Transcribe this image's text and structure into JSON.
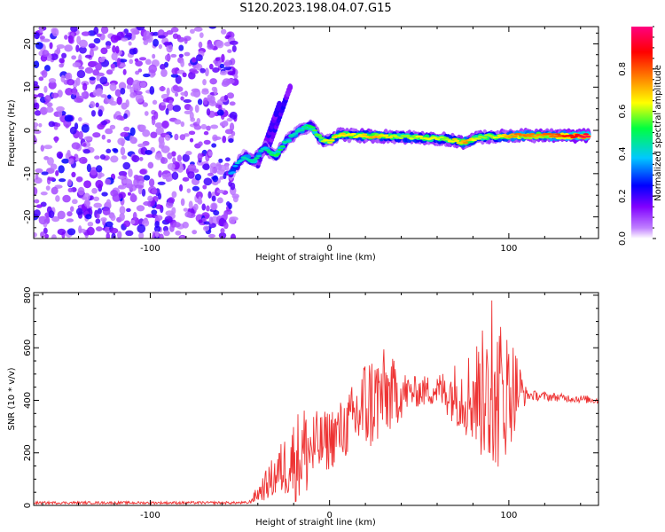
{
  "title": "S120.2023.198.04.07.G15",
  "chart_data": [
    {
      "type": "heatmap",
      "title": "S120.2023.198.04.07.G15",
      "xlabel": "Height of straight line (km)",
      "ylabel": "Frequency (Hz)",
      "xlim": [
        -165,
        150
      ],
      "ylim": [
        -25,
        24
      ],
      "x_ticks": [
        "-100",
        "0",
        "100"
      ],
      "y_ticks": [
        "20",
        "10",
        "0",
        "-10",
        "-20"
      ],
      "colorbar": {
        "label": "Normalized spectral amplitude",
        "range": [
          0,
          1
        ],
        "ticks": [
          "0.0",
          "0.2",
          "0.4",
          "0.6",
          "0.8"
        ],
        "colors": [
          "#ffffff",
          "#9400ff",
          "#0000ff",
          "#00c8ff",
          "#00ff40",
          "#ffff00",
          "#ff8000",
          "#ff0000",
          "#ff0080"
        ]
      },
      "noise_region_x": [
        -165,
        -52
      ],
      "ridge": [
        {
          "x": -55,
          "y": -10,
          "a": 0.35
        },
        {
          "x": -48,
          "y": -6,
          "a": 0.4
        },
        {
          "x": -42,
          "y": -7,
          "a": 0.45
        },
        {
          "x": -36,
          "y": -4,
          "a": 0.4
        },
        {
          "x": -30,
          "y": -6,
          "a": 0.5
        },
        {
          "x": -25,
          "y": -3,
          "a": 0.45
        },
        {
          "x": -20,
          "y": -1,
          "a": 0.4
        },
        {
          "x": -14,
          "y": 0.5,
          "a": 0.45
        },
        {
          "x": -10,
          "y": 1,
          "a": 0.5
        },
        {
          "x": -5,
          "y": -2,
          "a": 0.55
        },
        {
          "x": 0,
          "y": -2.5,
          "a": 0.6
        },
        {
          "x": 5,
          "y": -1,
          "a": 0.65
        },
        {
          "x": 15,
          "y": -1.2,
          "a": 0.6
        },
        {
          "x": 25,
          "y": -1.3,
          "a": 0.7
        },
        {
          "x": 40,
          "y": -1.5,
          "a": 0.55
        },
        {
          "x": 55,
          "y": -1.8,
          "a": 0.6
        },
        {
          "x": 65,
          "y": -2,
          "a": 0.55
        },
        {
          "x": 75,
          "y": -2.8,
          "a": 0.7
        },
        {
          "x": 85,
          "y": -1.5,
          "a": 0.55
        },
        {
          "x": 95,
          "y": -1.4,
          "a": 0.6
        },
        {
          "x": 105,
          "y": -1.2,
          "a": 0.75
        },
        {
          "x": 115,
          "y": -1.2,
          "a": 0.7
        },
        {
          "x": 125,
          "y": -1.2,
          "a": 0.75
        },
        {
          "x": 135,
          "y": -1.3,
          "a": 0.85
        },
        {
          "x": 145,
          "y": -1.2,
          "a": 0.9
        }
      ],
      "streaks": [
        {
          "x": [
            -35,
            -22
          ],
          "y": [
            -5,
            10
          ]
        },
        {
          "x": [
            -40,
            -28
          ],
          "y": [
            -8,
            6
          ]
        }
      ]
    },
    {
      "type": "line",
      "xlabel": "Height of straight line (km)",
      "ylabel": "SNR (10 * v/v)",
      "xlim": [
        -165,
        150
      ],
      "ylim": [
        0,
        810
      ],
      "x_ticks": [
        "-100",
        "0",
        "100"
      ],
      "y_ticks": [
        "800",
        "600",
        "400",
        "200",
        "0"
      ],
      "color": "#ee3333",
      "envelope": [
        {
          "x": -165,
          "base": 10,
          "amp": 5
        },
        {
          "x": -45,
          "base": 10,
          "amp": 5
        },
        {
          "x": -35,
          "base": 80,
          "amp": 60
        },
        {
          "x": -25,
          "base": 150,
          "amp": 120
        },
        {
          "x": -15,
          "base": 200,
          "amp": 200
        },
        {
          "x": -5,
          "base": 230,
          "amp": 120
        },
        {
          "x": 10,
          "base": 300,
          "amp": 120
        },
        {
          "x": 20,
          "base": 380,
          "amp": 200
        },
        {
          "x": 30,
          "base": 420,
          "amp": 180
        },
        {
          "x": 45,
          "base": 430,
          "amp": 60
        },
        {
          "x": 60,
          "base": 440,
          "amp": 60
        },
        {
          "x": 75,
          "base": 420,
          "amp": 150
        },
        {
          "x": 85,
          "base": 420,
          "amp": 250
        },
        {
          "x": 95,
          "base": 420,
          "amp": 300
        },
        {
          "x": 103,
          "base": 450,
          "amp": 180
        },
        {
          "x": 110,
          "base": 420,
          "amp": 20
        },
        {
          "x": 130,
          "base": 410,
          "amp": 15
        },
        {
          "x": 150,
          "base": 400,
          "amp": 15
        }
      ]
    }
  ]
}
